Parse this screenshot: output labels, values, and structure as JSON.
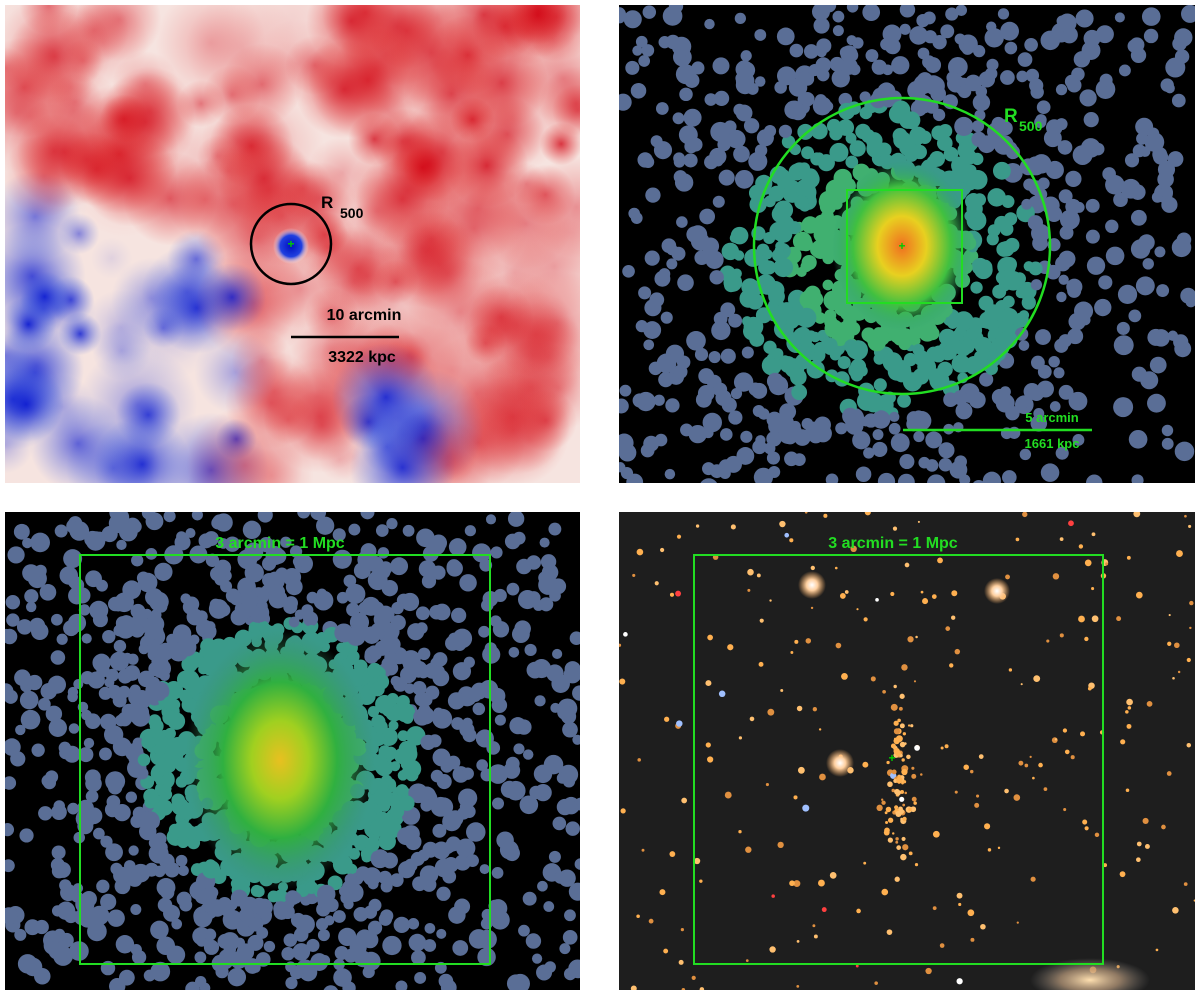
{
  "panels": [
    {
      "labels": {
        "radius": "R",
        "radius_sub": "500",
        "scale_angle": "10 arcmin",
        "scale_length": "3322 kpc"
      }
    },
    {
      "labels": {
        "radius": "R",
        "radius_sub": "500",
        "scale_angle": "5 arcmin",
        "scale_length": "1661 kpc"
      }
    },
    {
      "labels": {
        "scale": "3 arcmin = 1 Mpc"
      }
    },
    {
      "labels": {
        "scale": "3 arcmin = 1 Mpc"
      }
    }
  ]
}
